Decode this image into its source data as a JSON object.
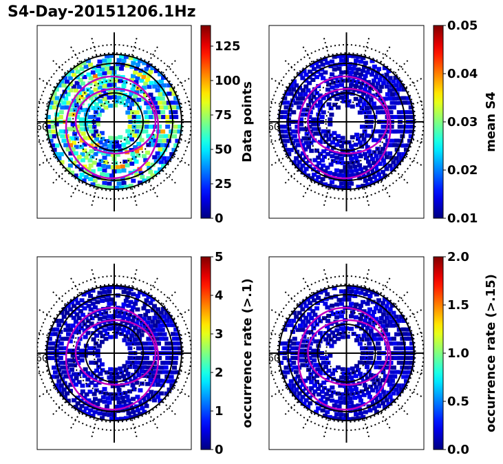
{
  "title": "S4-Day-20151206.1Hz",
  "panel_tick_label": "60",
  "colormap": "jet",
  "chart_data": [
    {
      "type": "heatmap",
      "projection": "polar",
      "colorbar": {
        "label": "Data points",
        "ticks": [
          "0",
          "25",
          "50",
          "75",
          "100",
          "125"
        ],
        "range": [
          0,
          140
        ]
      },
      "density": "high",
      "overlay_color": "#c000c0"
    },
    {
      "type": "heatmap",
      "projection": "polar",
      "colorbar": {
        "label": "mean S4",
        "ticks": [
          "0.01",
          "0.02",
          "0.03",
          "0.04",
          "0.05"
        ],
        "range": [
          0.01,
          0.05
        ]
      },
      "density": "low",
      "overlay_color": "#c000c0"
    },
    {
      "type": "heatmap",
      "projection": "polar",
      "colorbar": {
        "label": "occurrence rate (>.1)",
        "ticks": [
          "0",
          "1",
          "2",
          "3",
          "4",
          "5"
        ],
        "range": [
          0,
          5
        ]
      },
      "density": "low",
      "overlay_color": "#c000c0"
    },
    {
      "type": "heatmap",
      "projection": "polar",
      "colorbar": {
        "label": "occurrence rate (>.15)",
        "ticks": [
          "0.0",
          "0.5",
          "1.0",
          "1.5",
          "2.0"
        ],
        "range": [
          0,
          2
        ]
      },
      "density": "low",
      "overlay_color": "#c000c0"
    }
  ]
}
